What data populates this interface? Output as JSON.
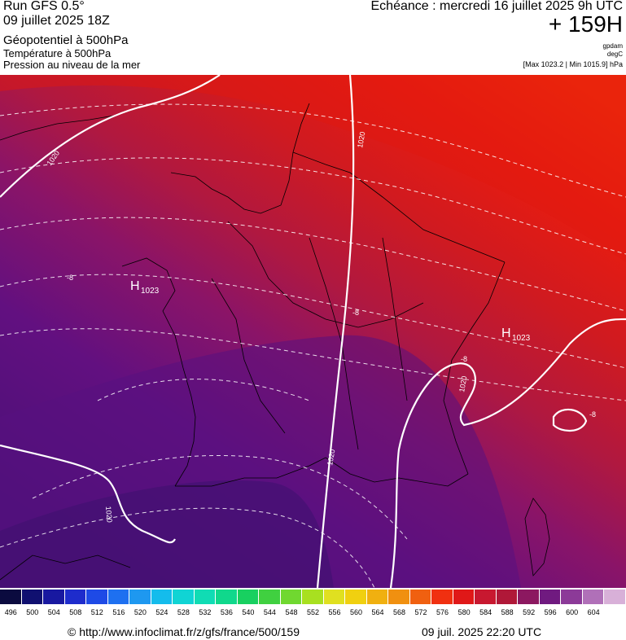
{
  "header": {
    "run": "Run GFS 0.5°",
    "run_date": "09 juillet 2025 18Z",
    "field_geopotential": "Géopotentiel à 500hPa",
    "field_temperature": "Température à 500hPa",
    "field_pressure": "Pression au niveau de la mer",
    "echeance": "Echéance : mercredi 16 juillet 2025 9h UTC",
    "lead_time": "+ 159H",
    "unit_geopotential": "gpdam",
    "unit_temperature": "degC",
    "pressure_range": "[Max 1023.2 | Min 1015.9] hPa"
  },
  "map": {
    "high_centers": [
      {
        "symbol": "H",
        "value": "1023"
      },
      {
        "symbol": "H",
        "value": "1023"
      }
    ],
    "isobar_labels": [
      "1020",
      "1020",
      "1020",
      "1020",
      "1020"
    ],
    "isotherm_labels": [
      "-8",
      "-8",
      "-8",
      "-8"
    ]
  },
  "legend": {
    "values": [
      "496",
      "500",
      "504",
      "508",
      "512",
      "516",
      "520",
      "524",
      "528",
      "532",
      "536",
      "540",
      "544",
      "548",
      "552",
      "556",
      "560",
      "564",
      "568",
      "572",
      "576",
      "580",
      "584",
      "588",
      "592",
      "596",
      "600",
      "604"
    ],
    "colors": [
      "#0b0b3f",
      "#101070",
      "#1818a0",
      "#1e2ccc",
      "#1e4ae6",
      "#1e70f0",
      "#1e98f0",
      "#14bcec",
      "#10d4d4",
      "#10dcb4",
      "#10d88c",
      "#18d060",
      "#40d040",
      "#70d830",
      "#a8e020",
      "#e0e020",
      "#f0d010",
      "#f0b010",
      "#f09010",
      "#f06010",
      "#f03010",
      "#e01818",
      "#c81830",
      "#b01838",
      "#8c1860",
      "#701a80",
      "#8c3a98",
      "#b070b8",
      "#d8b0d8"
    ]
  },
  "footer": {
    "credit": "© http://www.infoclimat.fr/z/gfs/france/500/159",
    "timestamp": "09 juil. 2025 22:20 UTC"
  }
}
